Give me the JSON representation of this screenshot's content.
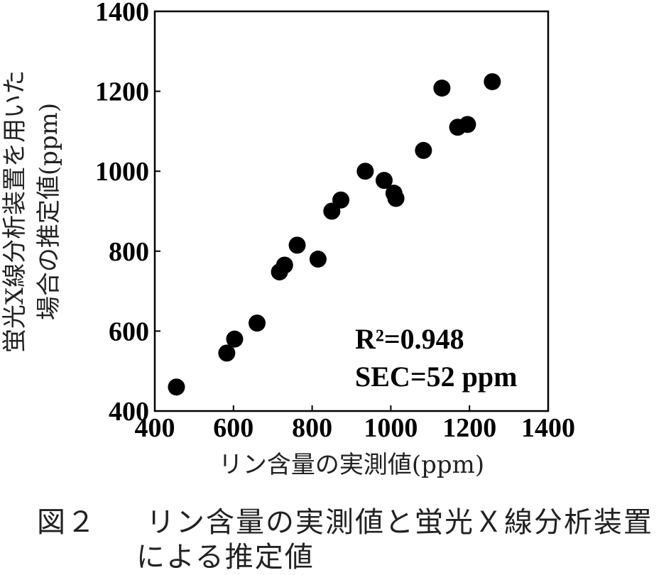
{
  "chart_data": {
    "type": "scatter",
    "xlabel": "リン含量の実測値(ppm)",
    "ylabel_lines": [
      "蛍光X線分析装置を用いた",
      "場合の推定値(ppm)"
    ],
    "xlim": [
      400,
      1400
    ],
    "ylim": [
      400,
      1400
    ],
    "xticks": [
      "400",
      "600",
      "800",
      "1000",
      "1200",
      "1400"
    ],
    "yticks": [
      "400",
      "600",
      "800",
      "1000",
      "1200",
      "1400"
    ],
    "grid": false,
    "legend": "none",
    "marker_color": "#000000",
    "annotations": {
      "r2": "R²=0.948",
      "sec": "SEC=52 ppm"
    },
    "points": [
      {
        "x": 455,
        "y": 460
      },
      {
        "x": 583,
        "y": 545
      },
      {
        "x": 603,
        "y": 580
      },
      {
        "x": 660,
        "y": 620
      },
      {
        "x": 717,
        "y": 748
      },
      {
        "x": 730,
        "y": 765
      },
      {
        "x": 762,
        "y": 815
      },
      {
        "x": 815,
        "y": 780
      },
      {
        "x": 850,
        "y": 900
      },
      {
        "x": 873,
        "y": 928
      },
      {
        "x": 935,
        "y": 1000
      },
      {
        "x": 983,
        "y": 977
      },
      {
        "x": 1008,
        "y": 945
      },
      {
        "x": 1013,
        "y": 932
      },
      {
        "x": 1083,
        "y": 1052
      },
      {
        "x": 1130,
        "y": 1208
      },
      {
        "x": 1170,
        "y": 1110
      },
      {
        "x": 1195,
        "y": 1117
      },
      {
        "x": 1258,
        "y": 1224
      }
    ]
  },
  "caption": {
    "figure_label": "図２",
    "line1": "リン含量の実測値と蛍光Ｘ線分析装置",
    "line2": "による推定値"
  }
}
